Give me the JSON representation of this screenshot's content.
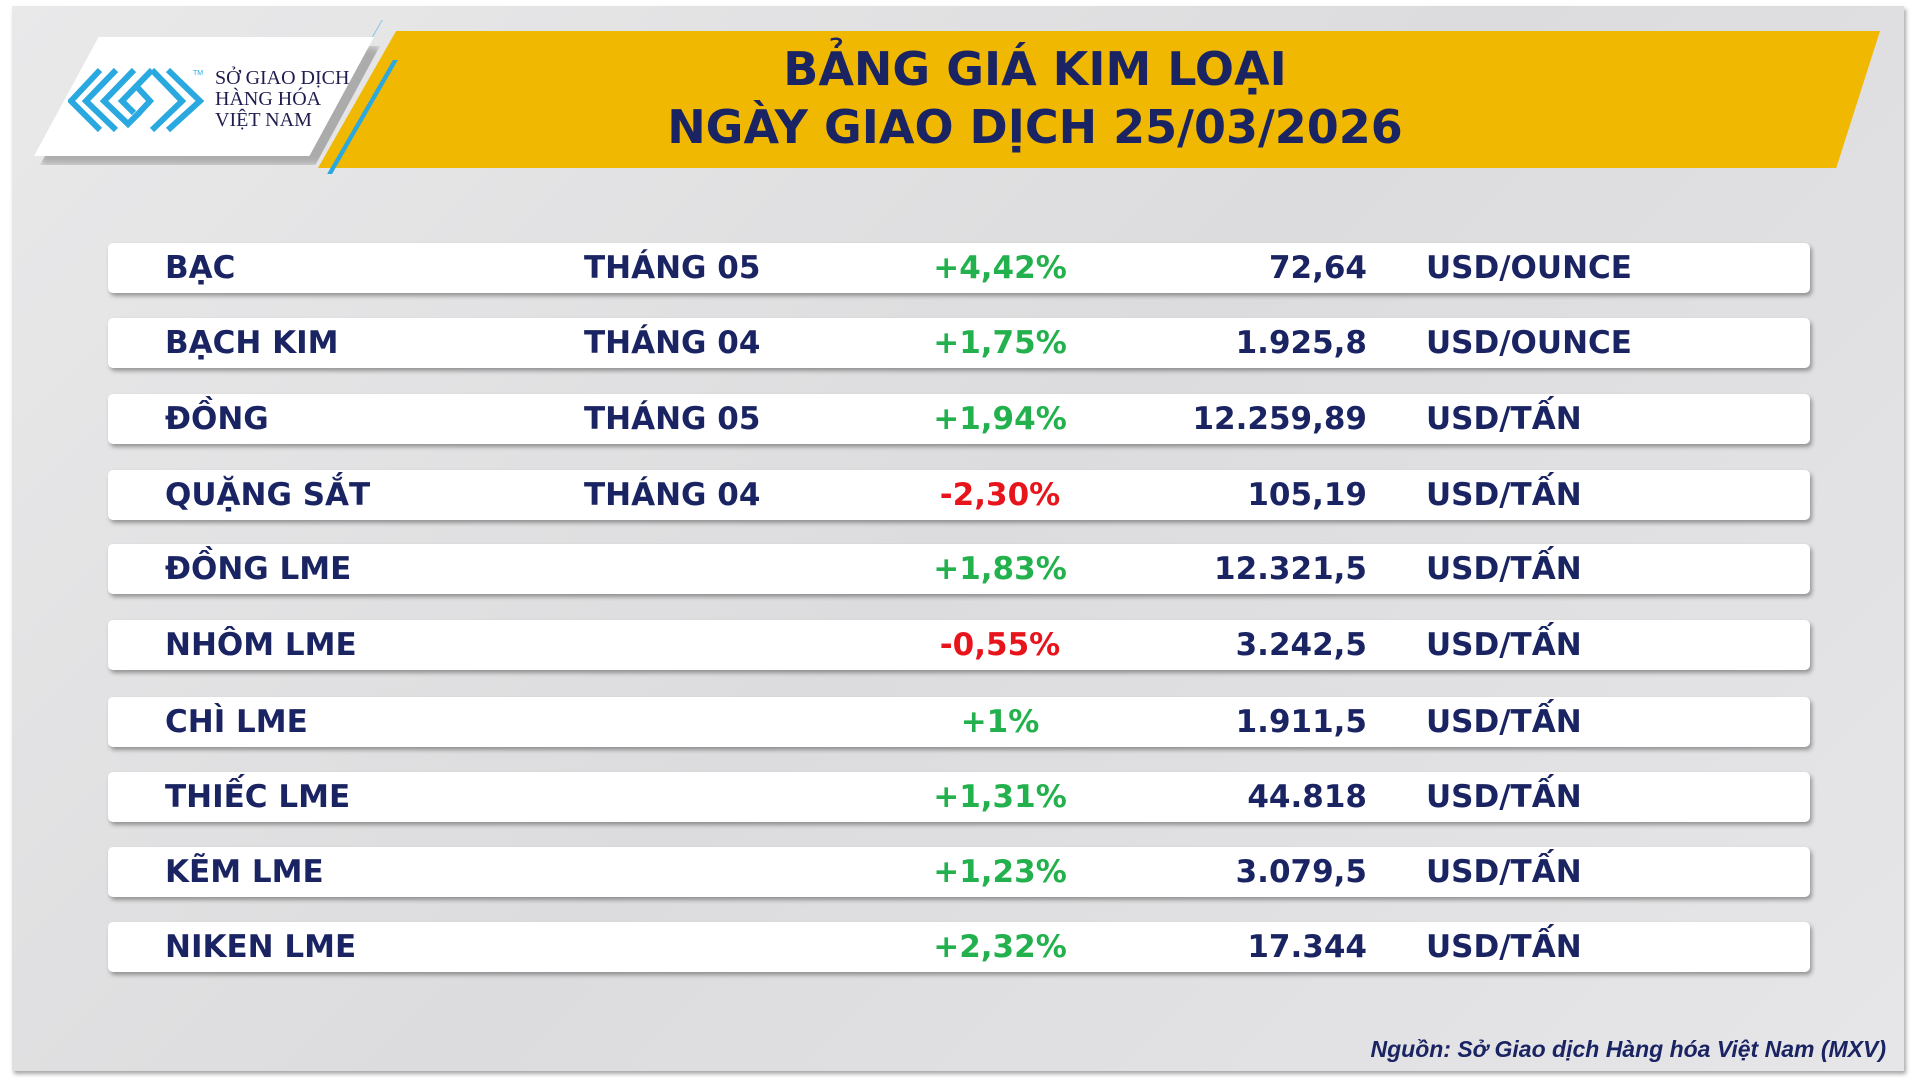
{
  "logo": {
    "line1": "SỞ GIAO DỊCH",
    "line2": "HÀNG HÓA",
    "line3": "VIỆT NAM",
    "tm": "TM"
  },
  "header": {
    "title_line1": "BẢNG GIÁ KIM LOẠI",
    "title_line2": "NGÀY GIAO DỊCH 25/03/2026"
  },
  "colors": {
    "navy": "#1a2463",
    "up": "#22b14c",
    "down": "#e8141c",
    "banner": "#f0b800",
    "logo_blue": "#2aa8e0"
  },
  "rows": [
    {
      "name": "BẠC",
      "month": "THÁNG 05",
      "change": "+4,42%",
      "direction": "up",
      "price": "72,64",
      "unit": "USD/OUNCE"
    },
    {
      "name": "BẠCH KIM",
      "month": "THÁNG 04",
      "change": "+1,75%",
      "direction": "up",
      "price": "1.925,8",
      "unit": "USD/OUNCE"
    },
    {
      "name": "ĐỒNG",
      "month": "THÁNG 05",
      "change": "+1,94%",
      "direction": "up",
      "price": "12.259,89",
      "unit": "USD/TẤN"
    },
    {
      "name": "QUẶNG SẮT",
      "month": "THÁNG 04",
      "change": "-2,30%",
      "direction": "down",
      "price": "105,19",
      "unit": "USD/TẤN"
    },
    {
      "name": "ĐỒNG LME",
      "month": "",
      "change": "+1,83%",
      "direction": "up",
      "price": "12.321,5",
      "unit": "USD/TẤN"
    },
    {
      "name": "NHÔM LME",
      "month": "",
      "change": "-0,55%",
      "direction": "down",
      "price": "3.242,5",
      "unit": "USD/TẤN"
    },
    {
      "name": "CHÌ LME",
      "month": "",
      "change": "+1%",
      "direction": "up",
      "price": "1.911,5",
      "unit": "USD/TẤN"
    },
    {
      "name": "THIẾC LME",
      "month": "",
      "change": "+1,31%",
      "direction": "up",
      "price": "44.818",
      "unit": "USD/TẤN"
    },
    {
      "name": "KẼM LME",
      "month": "",
      "change": "+1,23%",
      "direction": "up",
      "price": "3.079,5",
      "unit": "USD/TẤN"
    },
    {
      "name": "NIKEN LME",
      "month": "",
      "change": "+2,32%",
      "direction": "up",
      "price": "17.344",
      "unit": "USD/TẤN"
    }
  ],
  "footer": {
    "source": "Nguồn: Sở Giao dịch Hàng hóa Việt Nam (MXV)"
  }
}
